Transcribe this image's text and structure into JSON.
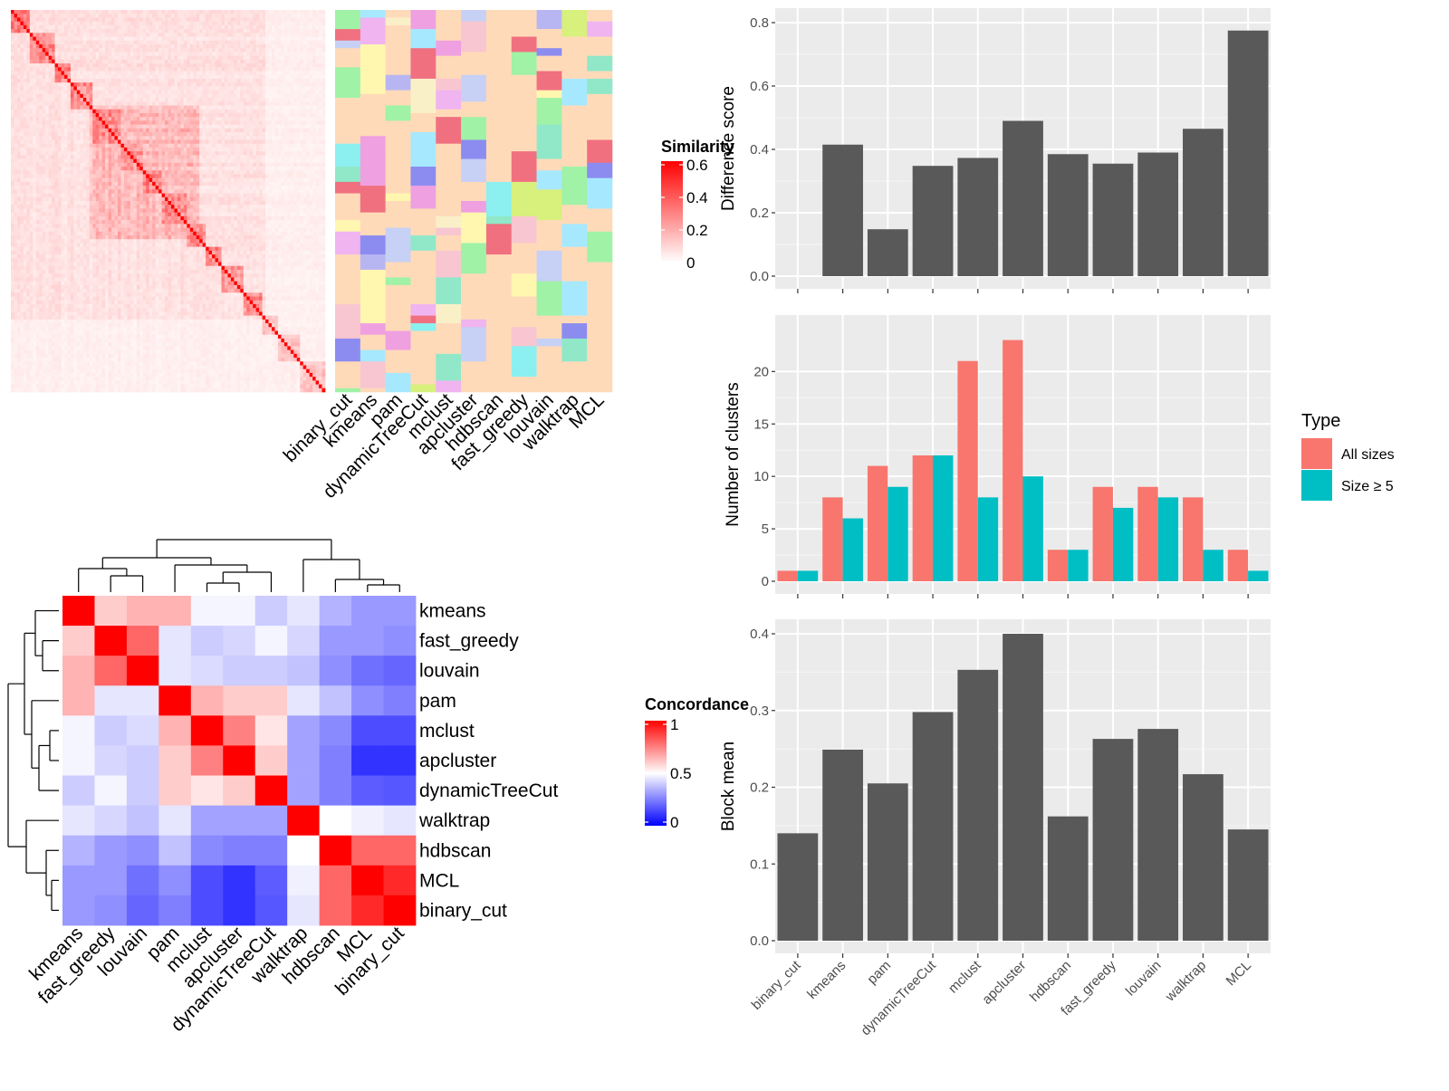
{
  "methods_order": [
    "binary_cut",
    "kmeans",
    "pam",
    "dynamicTreeCut",
    "mclust",
    "apcluster",
    "hdbscan",
    "fast_greedy",
    "louvain",
    "walktrap",
    "MCL"
  ],
  "similarity_legend": {
    "title": "Similarity",
    "ticks": [
      "0.6",
      "0.4",
      "0.2",
      "0"
    ],
    "colors": [
      "#ffffff",
      "#ff0000"
    ]
  },
  "concordance_legend": {
    "title": "Concordance",
    "ticks": [
      "1",
      "0.5",
      "0"
    ],
    "colors": [
      "#0000ff",
      "#ffffff",
      "#ff0000"
    ]
  },
  "chart_data": [
    {
      "type": "heatmap",
      "name": "similarity-heatmap",
      "n_terms": 100,
      "block_sizes": [
        6,
        8,
        5,
        7,
        9,
        7,
        6,
        8,
        6,
        5,
        7,
        6,
        5,
        7,
        8
      ],
      "value_range": [
        0,
        0.6
      ],
      "annotation_columns": [
        "binary_cut",
        "kmeans",
        "pam",
        "dynamicTreeCut",
        "mclust",
        "apcluster",
        "hdbscan",
        "fast_greedy",
        "louvain",
        "walktrap",
        "MCL"
      ]
    },
    {
      "type": "heatmap",
      "name": "concordance-heatmap",
      "rows": [
        "kmeans",
        "fast_greedy",
        "louvain",
        "pam",
        "mclust",
        "apcluster",
        "dynamicTreeCut",
        "walktrap",
        "hdbscan",
        "MCL",
        "binary_cut"
      ],
      "cols": [
        "kmeans",
        "fast_greedy",
        "louvain",
        "pam",
        "mclust",
        "apcluster",
        "dynamicTreeCut",
        "walktrap",
        "hdbscan",
        "MCL",
        "binary_cut"
      ],
      "values": [
        [
          1.0,
          0.6,
          0.65,
          0.65,
          0.48,
          0.48,
          0.4,
          0.45,
          0.35,
          0.3,
          0.3
        ],
        [
          0.6,
          1.0,
          0.8,
          0.45,
          0.4,
          0.42,
          0.48,
          0.42,
          0.3,
          0.3,
          0.28
        ],
        [
          0.65,
          0.8,
          1.0,
          0.45,
          0.43,
          0.4,
          0.4,
          0.38,
          0.28,
          0.22,
          0.2
        ],
        [
          0.65,
          0.45,
          0.45,
          1.0,
          0.65,
          0.6,
          0.6,
          0.45,
          0.38,
          0.28,
          0.25
        ],
        [
          0.48,
          0.4,
          0.43,
          0.65,
          1.0,
          0.75,
          0.55,
          0.32,
          0.27,
          0.15,
          0.15
        ],
        [
          0.48,
          0.42,
          0.4,
          0.6,
          0.75,
          1.0,
          0.6,
          0.32,
          0.25,
          0.1,
          0.1
        ],
        [
          0.4,
          0.48,
          0.4,
          0.6,
          0.55,
          0.6,
          1.0,
          0.32,
          0.25,
          0.18,
          0.17
        ],
        [
          0.45,
          0.42,
          0.38,
          0.45,
          0.32,
          0.32,
          0.32,
          1.0,
          0.5,
          0.47,
          0.45
        ],
        [
          0.35,
          0.3,
          0.28,
          0.38,
          0.27,
          0.25,
          0.25,
          0.5,
          1.0,
          0.8,
          0.8
        ],
        [
          0.3,
          0.3,
          0.22,
          0.28,
          0.15,
          0.1,
          0.18,
          0.47,
          0.8,
          1.0,
          0.92
        ],
        [
          0.3,
          0.28,
          0.2,
          0.25,
          0.15,
          0.1,
          0.17,
          0.45,
          0.8,
          0.92,
          1.0
        ]
      ],
      "value_range": [
        0,
        1
      ]
    },
    {
      "type": "bar",
      "name": "difference-score",
      "ylabel": "Difference score",
      "categories": [
        "binary_cut",
        "kmeans",
        "pam",
        "dynamicTreeCut",
        "mclust",
        "apcluster",
        "hdbscan",
        "fast_greedy",
        "louvain",
        "walktrap",
        "MCL"
      ],
      "values": [
        0,
        0.415,
        0.148,
        0.348,
        0.373,
        0.49,
        0.385,
        0.355,
        0.39,
        0.465,
        0.775
      ],
      "ylim": [
        0,
        0.8
      ],
      "yticks": [
        0,
        0.2,
        0.4,
        0.6,
        0.8
      ],
      "ytick_labels": [
        "0.0",
        "0.2",
        "0.4",
        "0.6",
        "0.8"
      ],
      "bar_color": "#595959",
      "grid": true
    },
    {
      "type": "bar",
      "name": "number-of-clusters",
      "ylabel": "Number of clusters",
      "categories": [
        "binary_cut",
        "kmeans",
        "pam",
        "dynamicTreeCut",
        "mclust",
        "apcluster",
        "hdbscan",
        "fast_greedy",
        "louvain",
        "walktrap",
        "MCL"
      ],
      "series": [
        {
          "name": "All sizes",
          "color": "#F8766D",
          "values": [
            1,
            8,
            11,
            12,
            21,
            23,
            3,
            9,
            9,
            8,
            3
          ]
        },
        {
          "name": "Size ≥ 5",
          "color": "#00BFC4",
          "values": [
            1,
            6,
            9,
            12,
            8,
            10,
            3,
            7,
            8,
            3,
            1
          ]
        }
      ],
      "ylim": [
        0,
        24
      ],
      "yticks": [
        0,
        5,
        10,
        15,
        20
      ],
      "ytick_labels": [
        "0",
        "5",
        "10",
        "15",
        "20"
      ],
      "legend": {
        "title": "Type",
        "position": "right"
      },
      "grid": true
    },
    {
      "type": "bar",
      "name": "block-mean",
      "ylabel": "Block mean",
      "categories": [
        "binary_cut",
        "kmeans",
        "pam",
        "dynamicTreeCut",
        "mclust",
        "apcluster",
        "hdbscan",
        "fast_greedy",
        "louvain",
        "walktrap",
        "MCL"
      ],
      "values": [
        0.14,
        0.249,
        0.205,
        0.298,
        0.353,
        0.4,
        0.162,
        0.263,
        0.276,
        0.217,
        0.145
      ],
      "ylim": [
        0,
        0.4
      ],
      "yticks": [
        0,
        0.1,
        0.2,
        0.3,
        0.4
      ],
      "ytick_labels": [
        "0.0",
        "0.1",
        "0.2",
        "0.3",
        "0.4"
      ],
      "bar_color": "#595959",
      "grid": true
    }
  ]
}
